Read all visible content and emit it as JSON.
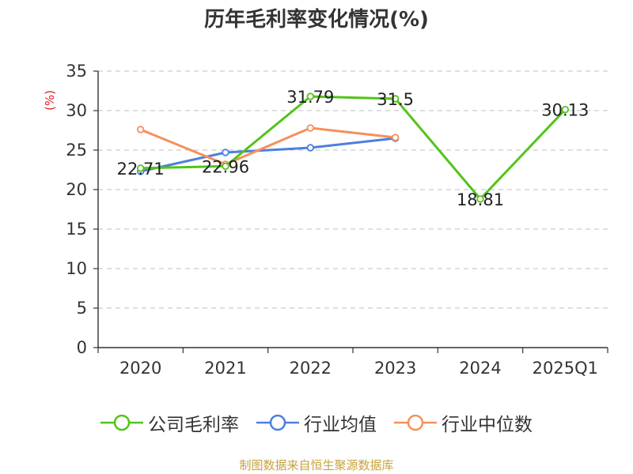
{
  "chart_data": {
    "type": "line",
    "title": "历年毛利率变化情况(%)",
    "ylabel": "(%)",
    "xlabel": "",
    "categories": [
      "2020",
      "2021",
      "2022",
      "2023",
      "2024",
      "2025Q1"
    ],
    "ylim": [
      0,
      35
    ],
    "yticks": [
      0,
      5,
      10,
      15,
      20,
      25,
      30,
      35
    ],
    "grid": true,
    "legend_position": "bottom",
    "series": [
      {
        "name": "公司毛利率",
        "color": "#52c41a",
        "values": [
          22.71,
          22.96,
          31.79,
          31.5,
          18.81,
          30.13
        ],
        "labels": [
          "22.71",
          "22.96",
          "31.79",
          "31.5",
          "18.81",
          "30.13"
        ]
      },
      {
        "name": "行业均值",
        "color": "#4e7fe0",
        "values": [
          22.3,
          24.7,
          25.3,
          26.5,
          null,
          null
        ],
        "labels": []
      },
      {
        "name": "行业中位数",
        "color": "#f5905a",
        "values": [
          27.6,
          23.2,
          27.8,
          26.6,
          null,
          null
        ],
        "labels": []
      }
    ]
  },
  "source": "制图数据来自恒生聚源数据库",
  "colors": {
    "axis": "#333333",
    "grid": "#cccccc",
    "ylabel": "#e02020"
  }
}
